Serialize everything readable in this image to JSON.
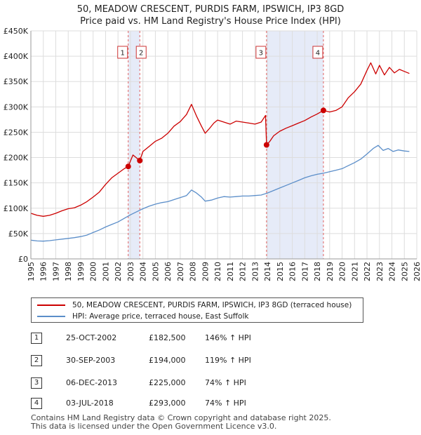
{
  "title_line1": "50, MEADOW CRESCENT, PURDIS FARM, IPSWICH, IP3 8GD",
  "title_line2": "Price paid vs. HM Land Registry's House Price Index (HPI)",
  "legend": {
    "property_label": "50, MEADOW CRESCENT, PURDIS FARM, IPSWICH, IP3 8GD (terraced house)",
    "hpi_label": "HPI: Average price, terraced house, East Suffolk",
    "property_color": "#cc0000",
    "hpi_color": "#5b8ec9"
  },
  "transactions": [
    {
      "num": "1",
      "date": "25-OCT-2002",
      "price": "£182,500",
      "pct": "146% ↑ HPI"
    },
    {
      "num": "2",
      "date": "30-SEP-2003",
      "price": "£194,000",
      "pct": "119% ↑ HPI"
    },
    {
      "num": "3",
      "date": "06-DEC-2013",
      "price": "£225,000",
      "pct": "74% ↑ HPI"
    },
    {
      "num": "4",
      "date": "03-JUL-2018",
      "price": "£293,000",
      "pct": "74% ↑ HPI"
    }
  ],
  "footer_line1": "Contains HM Land Registry data © Crown copyright and database right 2025.",
  "footer_line2": "This data is licensed under the Open Government Licence v3.0.",
  "chart_data": {
    "type": "line",
    "title": "Price paid vs. HM Land Registry's House Price Index (HPI)",
    "xlabel": "",
    "ylabel": "",
    "xlim": [
      1995,
      2026
    ],
    "ylim": [
      0,
      450000
    ],
    "y_ticks": [
      0,
      50000,
      100000,
      150000,
      200000,
      250000,
      300000,
      350000,
      400000,
      450000
    ],
    "y_tick_labels": [
      "£0",
      "£50K",
      "£100K",
      "£150K",
      "£200K",
      "£250K",
      "£300K",
      "£350K",
      "£400K",
      "£450K"
    ],
    "x_ticks": [
      1995,
      1996,
      1997,
      1998,
      1999,
      2000,
      2001,
      2002,
      2003,
      2004,
      2005,
      2006,
      2007,
      2008,
      2009,
      2010,
      2011,
      2012,
      2013,
      2014,
      2015,
      2016,
      2017,
      2018,
      2019,
      2020,
      2021,
      2022,
      2023,
      2024,
      2025,
      2026
    ],
    "grid": true,
    "shaded_periods": [
      [
        2002.82,
        2003.75
      ],
      [
        2013.93,
        2018.5
      ]
    ],
    "sale_markers": [
      {
        "label": "1",
        "x": 2002.82,
        "y": 182500
      },
      {
        "label": "2",
        "x": 2003.75,
        "y": 194000
      },
      {
        "label": "3",
        "x": 2013.93,
        "y": 225000
      },
      {
        "label": "4",
        "x": 2018.5,
        "y": 293000
      }
    ],
    "series": [
      {
        "name": "50, MEADOW CRESCENT, PURDIS FARM, IPSWICH, IP3 8GD (terraced house)",
        "color": "#cc0000",
        "x": [
          1995,
          1995.5,
          1996,
          1996.5,
          1997,
          1997.5,
          1998,
          1998.5,
          1999,
          1999.5,
          2000,
          2000.5,
          2001,
          2001.5,
          2002,
          2002.5,
          2002.82,
          2003.2,
          2003.75,
          2004,
          2004.5,
          2005,
          2005.5,
          2006,
          2006.5,
          2007,
          2007.5,
          2007.9,
          2008.3,
          2008.7,
          2009,
          2009.3,
          2009.7,
          2010,
          2010.5,
          2011,
          2011.5,
          2012,
          2012.5,
          2013,
          2013.5,
          2013.85,
          2013.93,
          2014.2,
          2014.5,
          2015,
          2015.5,
          2016,
          2016.5,
          2017,
          2017.5,
          2018,
          2018.5,
          2019,
          2019.5,
          2020,
          2020.5,
          2021,
          2021.5,
          2022,
          2022.3,
          2022.7,
          2023,
          2023.4,
          2023.8,
          2024.2,
          2024.6,
          2025,
          2025.4
        ],
        "values": [
          90000,
          86000,
          84000,
          86000,
          90000,
          95000,
          99000,
          101000,
          106000,
          113000,
          122000,
          132000,
          147000,
          160000,
          169000,
          178000,
          182500,
          205000,
          194000,
          212000,
          222000,
          232000,
          238000,
          248000,
          262000,
          271000,
          285000,
          305000,
          282000,
          262000,
          248000,
          256000,
          268000,
          274000,
          270000,
          266000,
          272000,
          270000,
          268000,
          266000,
          270000,
          283000,
          225000,
          232000,
          243000,
          252000,
          258000,
          263000,
          268000,
          273000,
          280000,
          286000,
          293000,
          290000,
          293000,
          300000,
          318000,
          330000,
          345000,
          372000,
          387000,
          365000,
          382000,
          363000,
          378000,
          367000,
          374000,
          370000,
          366000
        ]
      },
      {
        "name": "HPI: Average price, terraced house, East Suffolk",
        "color": "#5b8ec9",
        "x": [
          1995,
          1995.5,
          1996,
          1996.5,
          1997,
          1997.5,
          1998,
          1998.5,
          1999,
          1999.5,
          2000,
          2000.5,
          2001,
          2001.5,
          2002,
          2002.5,
          2003,
          2003.5,
          2004,
          2004.5,
          2005,
          2005.5,
          2006,
          2006.5,
          2007,
          2007.5,
          2007.9,
          2008.3,
          2008.7,
          2009,
          2009.5,
          2010,
          2010.5,
          2011,
          2011.5,
          2012,
          2012.5,
          2013,
          2013.5,
          2014,
          2014.5,
          2015,
          2015.5,
          2016,
          2016.5,
          2017,
          2017.5,
          2018,
          2018.5,
          2019,
          2019.5,
          2020,
          2020.5,
          2021,
          2021.5,
          2022,
          2022.5,
          2022.9,
          2023.3,
          2023.7,
          2024.1,
          2024.5,
          2025,
          2025.4
        ],
        "values": [
          37000,
          35500,
          35000,
          36000,
          37500,
          39000,
          40500,
          42000,
          44000,
          47000,
          52000,
          57000,
          63000,
          68000,
          73000,
          80000,
          87000,
          93000,
          99000,
          104000,
          108000,
          111000,
          113000,
          117000,
          121000,
          125000,
          136000,
          130000,
          122000,
          114000,
          116000,
          120000,
          123000,
          122000,
          123000,
          124000,
          124000,
          125000,
          126000,
          130000,
          135000,
          140000,
          145000,
          150000,
          155000,
          160000,
          164000,
          167000,
          169000,
          172000,
          175000,
          178000,
          184000,
          190000,
          197000,
          207000,
          218000,
          224000,
          214000,
          218000,
          212000,
          215000,
          213000,
          212000
        ]
      }
    ]
  }
}
